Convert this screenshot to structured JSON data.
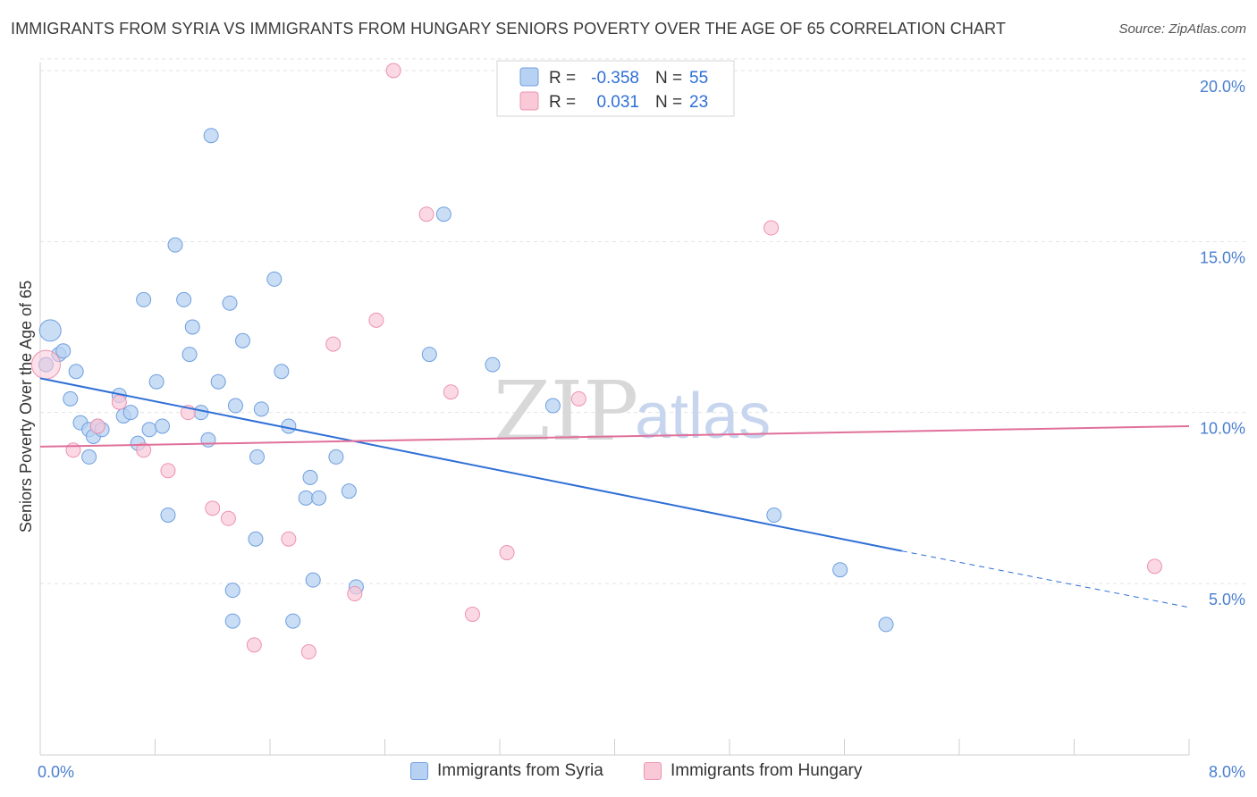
{
  "title": "IMMIGRANTS FROM SYRIA VS IMMIGRANTS FROM HUNGARY SENIORS POVERTY OVER THE AGE OF 65 CORRELATION CHART",
  "source": "Source: ZipAtlas.com",
  "watermark": {
    "zip": "ZIP",
    "atlas": "atlas"
  },
  "legend_top": {
    "rows": [
      {
        "r_label": "R =",
        "r_value": "-0.358",
        "n_label": "N =",
        "n_value": "55"
      },
      {
        "r_label": "R =",
        "r_value": "0.031",
        "n_label": "N =",
        "n_value": "23"
      }
    ]
  },
  "legend_bottom": {
    "items": [
      {
        "label": "Immigrants from Syria"
      },
      {
        "label": "Immigrants from Hungary"
      }
    ]
  },
  "colors": {
    "syria_fill": "#b7d1f2",
    "syria_stroke": "#6f9fe0",
    "syria_line": "#2f6fd6",
    "hungary_fill": "#f9c9d8",
    "hungary_stroke": "#ec93b0",
    "hungary_line": "#e0709a",
    "grid": "#e3e3e3",
    "tick_label": "#4a7fd0"
  },
  "chart_data": {
    "type": "scatter",
    "title": "IMMIGRANTS FROM SYRIA VS IMMIGRANTS FROM HUNGARY SENIORS POVERTY OVER THE AGE OF 65 CORRELATION CHART",
    "ylabel": "Seniors Poverty Over the Age of 65",
    "xlabel": "",
    "xlim": [
      0,
      8
    ],
    "ylim": [
      0,
      20.5
    ],
    "x_ticks_labeled": [
      {
        "value": 0,
        "label": "0.0%"
      },
      {
        "value": 8,
        "label": "8.0%"
      }
    ],
    "y_ticks": [
      {
        "value": 5,
        "label": "5.0%"
      },
      {
        "value": 10,
        "label": "10.0%"
      },
      {
        "value": 15,
        "label": "15.0%"
      },
      {
        "value": 20,
        "label": "20.0%"
      }
    ],
    "grid": true,
    "legend_position": "top-center",
    "series": [
      {
        "name": "Immigrants from Syria",
        "r": -0.358,
        "n": 55,
        "trend": {
          "x0": 0.0,
          "y0": 11.0,
          "x1": 6.0,
          "y1": 5.95,
          "dashed_to_x": 8.0,
          "dashed_to_y": 4.3
        },
        "points": [
          [
            0.07,
            12.4
          ],
          [
            0.13,
            11.7
          ],
          [
            0.16,
            11.8
          ],
          [
            0.25,
            11.2
          ],
          [
            0.21,
            10.4
          ],
          [
            0.28,
            9.7
          ],
          [
            0.34,
            9.5
          ],
          [
            0.37,
            9.3
          ],
          [
            0.4,
            9.6
          ],
          [
            0.43,
            9.5
          ],
          [
            0.34,
            8.7
          ],
          [
            0.55,
            10.5
          ],
          [
            0.58,
            9.9
          ],
          [
            0.63,
            10.0
          ],
          [
            0.68,
            9.1
          ],
          [
            0.76,
            9.5
          ],
          [
            0.85,
            9.6
          ],
          [
            0.81,
            10.9
          ],
          [
            0.72,
            13.3
          ],
          [
            0.94,
            14.9
          ],
          [
            1.0,
            13.3
          ],
          [
            1.04,
            11.7
          ],
          [
            1.06,
            12.5
          ],
          [
            1.12,
            10.0
          ],
          [
            1.17,
            9.2
          ],
          [
            1.24,
            10.9
          ],
          [
            1.32,
            13.2
          ],
          [
            1.36,
            10.2
          ],
          [
            1.41,
            12.1
          ],
          [
            1.19,
            18.1
          ],
          [
            0.89,
            7.0
          ],
          [
            1.51,
            8.7
          ],
          [
            1.54,
            10.1
          ],
          [
            1.63,
            13.9
          ],
          [
            1.68,
            11.2
          ],
          [
            1.73,
            9.6
          ],
          [
            1.88,
            8.1
          ],
          [
            1.85,
            7.5
          ],
          [
            1.94,
            7.5
          ],
          [
            2.06,
            8.7
          ],
          [
            2.15,
            7.7
          ],
          [
            2.2,
            4.9
          ],
          [
            1.9,
            5.1
          ],
          [
            1.76,
            3.9
          ],
          [
            1.34,
            3.9
          ],
          [
            1.34,
            4.8
          ],
          [
            1.5,
            6.3
          ],
          [
            2.71,
            11.7
          ],
          [
            2.81,
            15.8
          ],
          [
            3.15,
            11.4
          ],
          [
            3.57,
            10.2
          ],
          [
            5.11,
            7.0
          ],
          [
            5.57,
            5.4
          ],
          [
            5.89,
            3.8
          ],
          [
            0.04,
            11.4
          ]
        ]
      },
      {
        "name": "Immigrants from Hungary",
        "r": 0.031,
        "n": 23,
        "trend": {
          "x0": 0.0,
          "y0": 9.0,
          "x1": 8.0,
          "y1": 9.6
        },
        "points": [
          [
            0.04,
            11.4
          ],
          [
            0.23,
            8.9
          ],
          [
            0.4,
            9.6
          ],
          [
            0.55,
            10.3
          ],
          [
            0.72,
            8.9
          ],
          [
            0.89,
            8.3
          ],
          [
            1.03,
            10.0
          ],
          [
            1.2,
            7.2
          ],
          [
            1.31,
            6.9
          ],
          [
            1.49,
            3.2
          ],
          [
            1.73,
            6.3
          ],
          [
            1.87,
            3.0
          ],
          [
            2.04,
            12.0
          ],
          [
            2.19,
            4.7
          ],
          [
            2.34,
            12.7
          ],
          [
            2.46,
            20.0
          ],
          [
            2.69,
            15.8
          ],
          [
            2.86,
            10.6
          ],
          [
            3.01,
            4.1
          ],
          [
            3.25,
            5.9
          ],
          [
            3.75,
            10.4
          ],
          [
            5.09,
            15.4
          ],
          [
            7.76,
            5.5
          ]
        ]
      }
    ]
  }
}
